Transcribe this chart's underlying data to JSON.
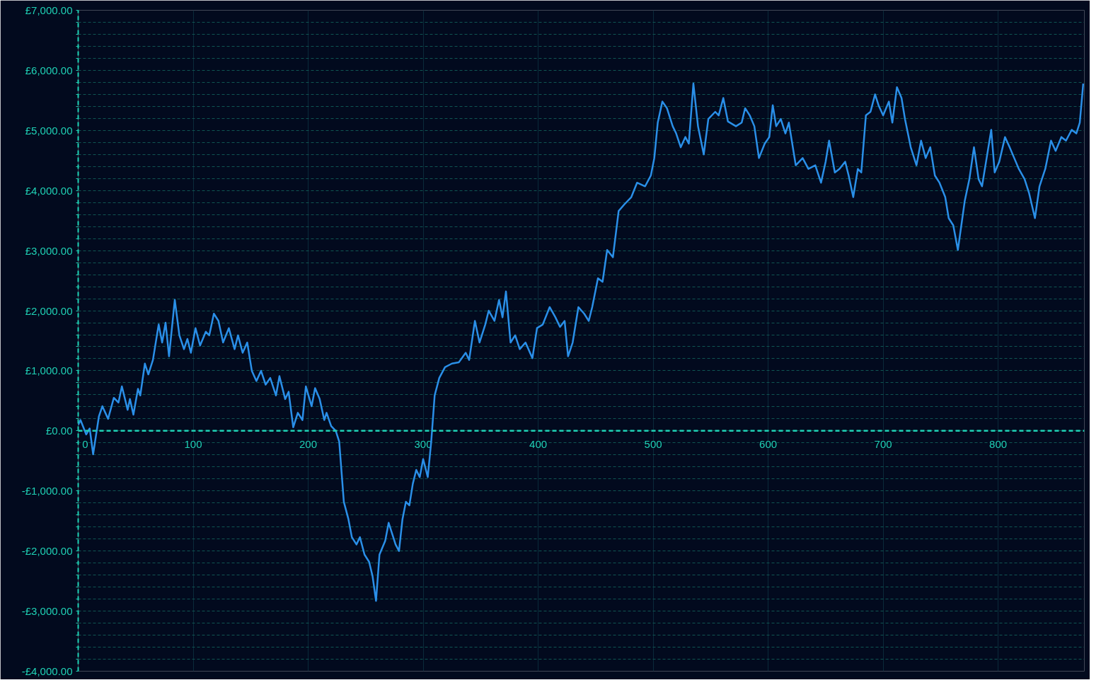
{
  "chart_data": {
    "type": "line",
    "x": [
      0,
      2,
      7,
      10,
      13,
      18,
      21,
      26,
      31,
      35,
      38,
      43,
      45,
      48,
      52,
      54,
      58,
      61,
      65,
      70,
      73,
      76,
      79,
      84,
      88,
      92,
      95,
      98,
      102,
      106,
      111,
      114,
      118,
      122,
      126,
      131,
      136,
      139,
      143,
      147,
      151,
      155,
      159,
      163,
      167,
      172,
      175,
      180,
      183,
      187,
      191,
      195,
      198,
      203,
      206,
      210,
      214,
      216,
      220,
      224,
      227,
      231,
      235,
      238,
      242,
      245,
      249,
      253,
      256,
      259,
      262,
      267,
      270,
      273,
      276,
      279,
      282,
      285,
      288,
      291,
      294,
      297,
      300,
      304,
      307,
      310,
      314,
      319,
      325,
      331,
      337,
      340,
      345,
      349,
      354,
      357,
      362,
      366,
      369,
      372,
      376,
      380,
      384,
      389,
      395,
      399,
      404,
      410,
      415,
      419,
      423,
      426,
      430,
      435,
      440,
      444,
      447,
      452,
      456,
      460,
      465,
      470,
      475,
      481,
      486,
      493,
      498,
      501,
      504,
      508,
      512,
      517,
      520,
      524,
      528,
      531,
      535,
      539,
      544,
      548,
      554,
      557,
      561,
      565,
      572,
      577,
      580,
      584,
      588,
      592,
      597,
      601,
      604,
      607,
      611,
      615,
      618,
      624,
      630,
      635,
      641,
      646,
      650,
      653,
      658,
      662,
      667,
      670,
      674,
      678,
      681,
      685,
      689,
      693,
      696,
      700,
      705,
      708,
      712,
      716,
      719,
      724,
      729,
      733,
      737,
      741,
      745,
      749,
      754,
      757,
      761,
      765,
      768,
      771,
      775,
      779,
      783,
      786,
      790,
      794,
      797,
      801,
      806,
      810,
      814,
      818,
      823,
      827,
      832,
      836,
      841,
      846,
      850,
      855,
      859,
      864,
      868,
      871,
      874
    ],
    "series": [
      {
        "color": "#2a8fe8",
        "values": [
          100,
          180,
          -60,
          40,
          -390,
          240,
          410,
          200,
          550,
          470,
          740,
          350,
          530,
          270,
          700,
          590,
          1120,
          940,
          1180,
          1770,
          1470,
          1800,
          1240,
          2180,
          1590,
          1360,
          1530,
          1300,
          1710,
          1420,
          1650,
          1590,
          1950,
          1830,
          1470,
          1710,
          1360,
          1590,
          1300,
          1470,
          1000,
          830,
          1000,
          770,
          880,
          590,
          910,
          530,
          650,
          60,
          300,
          180,
          740,
          410,
          710,
          530,
          180,
          300,
          80,
          0,
          -180,
          -1180,
          -1470,
          -1770,
          -1890,
          -1770,
          -2060,
          -2180,
          -2420,
          -2830,
          -2060,
          -1830,
          -1530,
          -1710,
          -1890,
          -2000,
          -1470,
          -1180,
          -1240,
          -880,
          -650,
          -770,
          -470,
          -770,
          -180,
          590,
          880,
          1060,
          1120,
          1140,
          1300,
          1180,
          1830,
          1470,
          1770,
          2000,
          1830,
          2180,
          1890,
          2320,
          1470,
          1590,
          1360,
          1470,
          1210,
          1710,
          1770,
          2060,
          1890,
          1730,
          1830,
          1240,
          1470,
          2060,
          1950,
          1830,
          2060,
          2540,
          2480,
          3010,
          2890,
          3660,
          3770,
          3890,
          4130,
          4070,
          4250,
          4540,
          5130,
          5480,
          5370,
          5070,
          4950,
          4720,
          4890,
          4780,
          5780,
          5070,
          4600,
          5190,
          5310,
          5250,
          5540,
          5150,
          5070,
          5130,
          5370,
          5250,
          5070,
          4540,
          4780,
          4890,
          5420,
          5070,
          5190,
          4950,
          5130,
          4420,
          4540,
          4360,
          4420,
          4130,
          4480,
          4830,
          4300,
          4360,
          4480,
          4250,
          3890,
          4360,
          4300,
          5250,
          5310,
          5600,
          5420,
          5250,
          5480,
          5130,
          5720,
          5540,
          5190,
          4720,
          4420,
          4830,
          4540,
          4720,
          4250,
          4130,
          3890,
          3540,
          3420,
          3010,
          3420,
          3830,
          4190,
          4720,
          4190,
          4070,
          4540,
          5010,
          4300,
          4480,
          4890,
          4720,
          4540,
          4360,
          4190,
          3950,
          3540,
          4070,
          4360,
          4830,
          4660,
          4890,
          4830,
          5010,
          4950,
          5130,
          5780
        ]
      }
    ],
    "xlim": [
      0,
      875
    ],
    "xticks": [
      0,
      100,
      200,
      300,
      400,
      500,
      600,
      700,
      800
    ],
    "ylim": [
      -4000,
      7000
    ],
    "yticks": [
      {
        "value": -4000,
        "label": "-£4,000.00"
      },
      {
        "value": -3800,
        "label": null
      },
      {
        "value": -3600,
        "label": null
      },
      {
        "value": -3400,
        "label": null
      },
      {
        "value": -3200,
        "label": null
      },
      {
        "value": -3000,
        "label": "-£3,000.00"
      },
      {
        "value": -2800,
        "label": null
      },
      {
        "value": -2600,
        "label": null
      },
      {
        "value": -2400,
        "label": null
      },
      {
        "value": -2200,
        "label": null
      },
      {
        "value": -2000,
        "label": "-£2,000.00"
      },
      {
        "value": -1800,
        "label": null
      },
      {
        "value": -1600,
        "label": null
      },
      {
        "value": -1400,
        "label": null
      },
      {
        "value": -1200,
        "label": null
      },
      {
        "value": -1000,
        "label": "-£1,000.00"
      },
      {
        "value": -800,
        "label": null
      },
      {
        "value": -600,
        "label": null
      },
      {
        "value": -400,
        "label": null
      },
      {
        "value": -200,
        "label": null
      },
      {
        "value": 0,
        "label": "£0.00"
      },
      {
        "value": 200,
        "label": null
      },
      {
        "value": 400,
        "label": null
      },
      {
        "value": 600,
        "label": null
      },
      {
        "value": 800,
        "label": null
      },
      {
        "value": 1000,
        "label": "£1,000.00"
      },
      {
        "value": 1200,
        "label": null
      },
      {
        "value": 1400,
        "label": null
      },
      {
        "value": 1600,
        "label": null
      },
      {
        "value": 1800,
        "label": null
      },
      {
        "value": 2000,
        "label": "£2,000.00"
      },
      {
        "value": 2200,
        "label": null
      },
      {
        "value": 2400,
        "label": null
      },
      {
        "value": 2600,
        "label": null
      },
      {
        "value": 2800,
        "label": null
      },
      {
        "value": 3000,
        "label": "£3,000.00"
      },
      {
        "value": 3200,
        "label": null
      },
      {
        "value": 3400,
        "label": null
      },
      {
        "value": 3600,
        "label": null
      },
      {
        "value": 3800,
        "label": null
      },
      {
        "value": 4000,
        "label": "£4,000.00"
      },
      {
        "value": 4200,
        "label": null
      },
      {
        "value": 4400,
        "label": null
      },
      {
        "value": 4600,
        "label": null
      },
      {
        "value": 4800,
        "label": null
      },
      {
        "value": 5000,
        "label": "£5,000.00"
      },
      {
        "value": 5200,
        "label": null
      },
      {
        "value": 5400,
        "label": null
      },
      {
        "value": 5600,
        "label": null
      },
      {
        "value": 5800,
        "label": null
      },
      {
        "value": 6000,
        "label": "£6,000.00"
      },
      {
        "value": 6200,
        "label": null
      },
      {
        "value": 6400,
        "label": null
      },
      {
        "value": 6600,
        "label": null
      },
      {
        "value": 6800,
        "label": null
      },
      {
        "value": 7000,
        "label": "£7,000.00"
      }
    ],
    "ref_lines": [
      {
        "axis": "y",
        "value": 0,
        "color": "#1fd1b5",
        "line_style": "dashed"
      }
    ],
    "grid": true,
    "marker": "none",
    "line_style": "solid"
  }
}
